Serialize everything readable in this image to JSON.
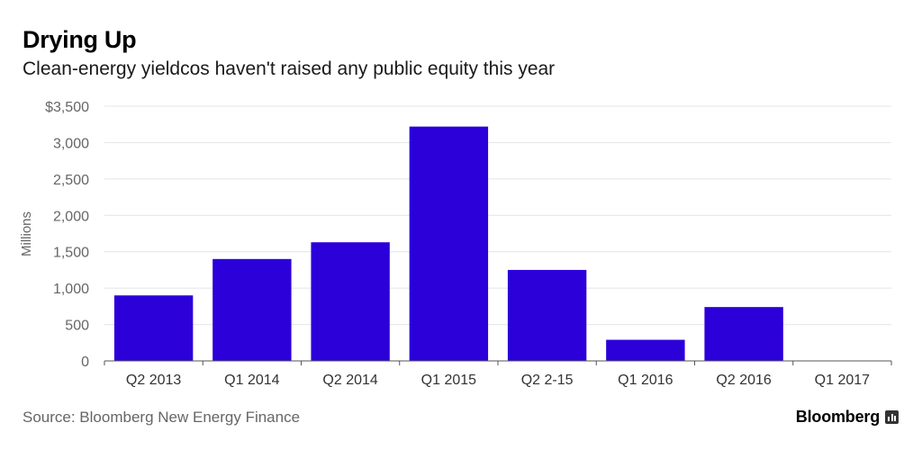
{
  "header": {
    "title": "Drying Up",
    "subtitle": "Clean-energy yieldcos haven't raised any public equity this year"
  },
  "footer": {
    "source": "Source: Bloomberg New Energy Finance",
    "brand": "Bloomberg",
    "brand_icon": "bloomberg-bars-icon"
  },
  "colors": {
    "bar": "#2c00d9",
    "grid": "#e4e4e4",
    "axis": "#555555",
    "tick_text": "#666666"
  },
  "chart_data": {
    "type": "bar",
    "categories": [
      "Q2 2013",
      "Q1 2014",
      "Q2 2014",
      "Q1 2015",
      "Q2 2-15",
      "Q1 2016",
      "Q2 2016",
      "Q1 2017"
    ],
    "values": [
      900,
      1400,
      1630,
      3220,
      1250,
      290,
      740,
      0
    ],
    "ylabel": "Millions",
    "ylim": [
      0,
      3500
    ],
    "yticks": [
      0,
      500,
      1000,
      1500,
      2000,
      2500,
      3000,
      3500
    ],
    "ytick_labels": [
      "0",
      "500",
      "1,000",
      "1,500",
      "2,000",
      "2,500",
      "3,000",
      "$3,500"
    ],
    "grid": true
  }
}
